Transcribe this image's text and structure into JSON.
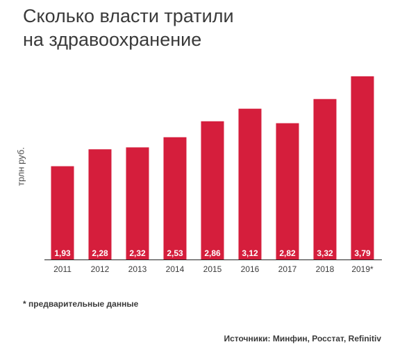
{
  "title_lines": [
    "Сколько власти тратили",
    "на здравоохранение"
  ],
  "footnote": "* предварительные данные",
  "source": "Источники: Минфин, Росстат, Refinitiv",
  "colors": {
    "bar": "#d51e3c",
    "bar_label": "#ffffff",
    "axis": "#222222",
    "text": "#3a3a3a"
  },
  "chart_data": {
    "type": "bar",
    "title": "Сколько власти тратили на здравоохранение",
    "xlabel": "",
    "ylabel": "трлн руб.",
    "categories": [
      "2011",
      "2012",
      "2013",
      "2014",
      "2015",
      "2016",
      "2017",
      "2018",
      "2019*"
    ],
    "values": [
      1.93,
      2.28,
      2.32,
      2.53,
      2.86,
      3.12,
      2.82,
      3.32,
      3.79
    ],
    "value_labels": [
      "1,93",
      "2,28",
      "2,32",
      "2,53",
      "2,86",
      "3,12",
      "2,82",
      "3,32",
      "3,79"
    ],
    "ylim": [
      0,
      3.79
    ],
    "grid": false,
    "legend": "none"
  }
}
